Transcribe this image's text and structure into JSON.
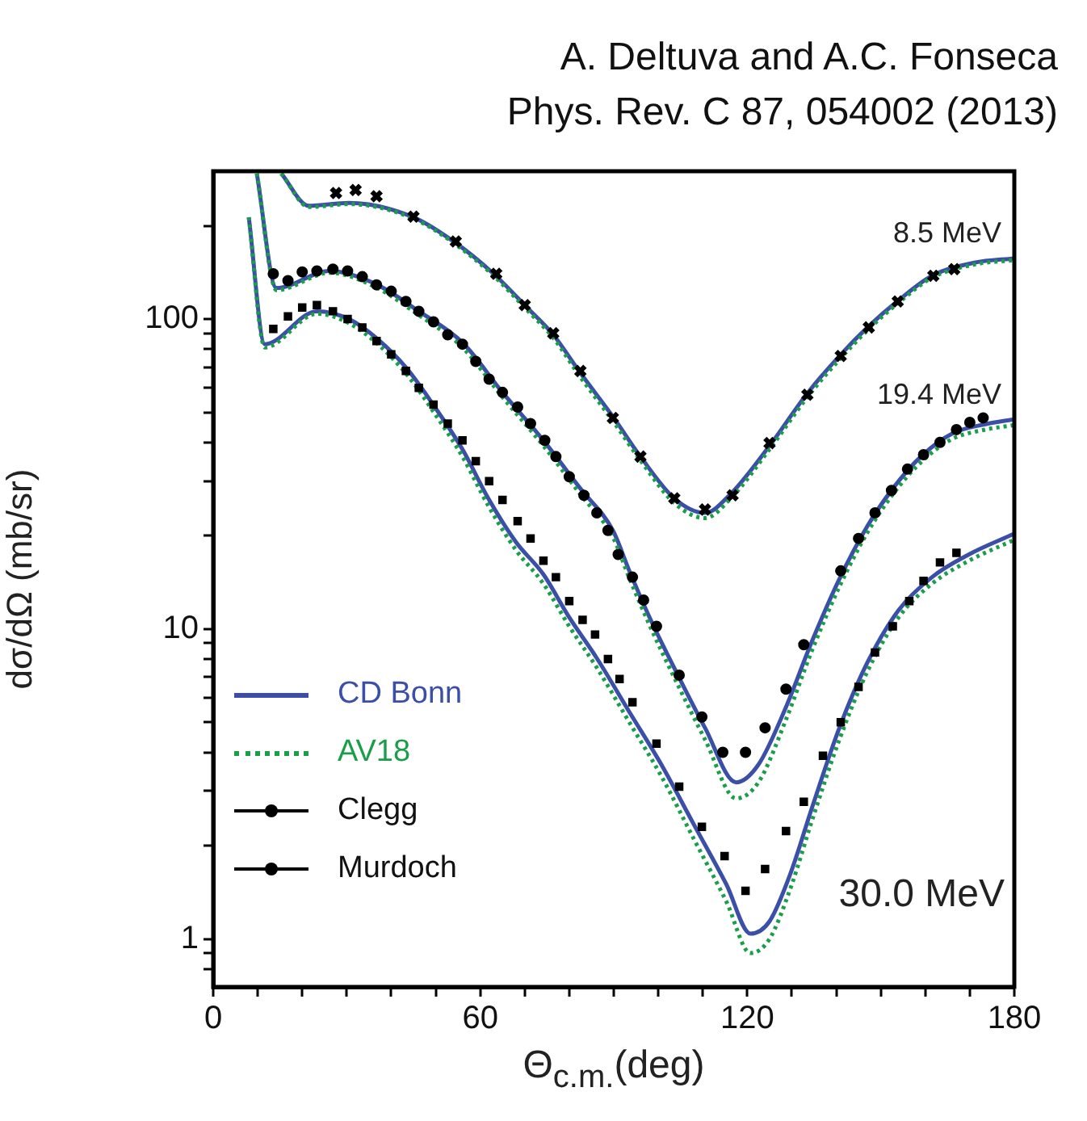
{
  "chart_data": {
    "type": "line",
    "title": "A. Deltuva and A.C. Fonseca",
    "subtitle": "Phys. Rev. C 87, 054002 (2013)",
    "xlabel": "Θ$_{c.m.}$(deg)",
    "ylabel": "dσ/dΩ (mb/sr)",
    "log": "y",
    "xlim": [
      0,
      180
    ],
    "ylim": [
      0.7,
      300
    ],
    "xticks": [
      0,
      {
        "value": 10,
        "label": null
      },
      {
        "value": 20,
        "label": null
      },
      {
        "value": 30,
        "label": null
      },
      {
        "value": 40,
        "label": null
      },
      {
        "value": 50,
        "label": null
      },
      60,
      {
        "value": 70,
        "label": null
      },
      {
        "value": 80,
        "label": null
      },
      {
        "value": 90,
        "label": null
      },
      {
        "value": 100,
        "label": null
      },
      {
        "value": 110,
        "label": null
      },
      120,
      {
        "value": 130,
        "label": null
      },
      {
        "value": 140,
        "label": null
      },
      {
        "value": 150,
        "label": null
      },
      {
        "value": 160,
        "label": null
      },
      {
        "value": 170,
        "label": null
      },
      180
    ],
    "yticks": [
      {
        "value": 0.8,
        "label": null
      },
      {
        "value": 0.9,
        "label": null
      },
      1,
      {
        "value": 2,
        "label": null
      },
      {
        "value": 3,
        "label": null
      },
      {
        "value": 4,
        "label": null
      },
      {
        "value": 5,
        "label": null
      },
      {
        "value": 6,
        "label": null
      },
      {
        "value": 7,
        "label": null
      },
      {
        "value": 8,
        "label": null
      },
      {
        "value": 9,
        "label": null
      },
      10,
      {
        "value": 20,
        "label": null
      },
      {
        "value": 30,
        "label": null
      },
      {
        "value": 40,
        "label": null
      },
      {
        "value": 50,
        "label": null
      },
      {
        "value": 60,
        "label": null
      },
      {
        "value": 70,
        "label": null
      },
      {
        "value": 80,
        "label": null
      },
      {
        "value": 90,
        "label": null
      },
      100,
      {
        "value": 200,
        "label": null
      }
    ],
    "legend": "center left",
    "annotations": [
      "8.5 MeV",
      "19.4 MeV",
      "30.0 MeV"
    ],
    "series": [
      {
        "name": "CD Bonn",
        "color": "#3b4fa8",
        "line_style": "solid",
        "marker": "none",
        "x": [
          15.3,
          21.5,
          30.5,
          45,
          54.5,
          63,
          70.5,
          76.4,
          82.5,
          90,
          96,
          103.6,
          110.5,
          116.4,
          125,
          133.5,
          140.7,
          147,
          154,
          161.5,
          171,
          180
        ],
        "values": [
          295,
          232,
          237,
          213,
          176,
          140,
          109,
          89,
          67,
          48,
          36,
          26.4,
          23.7,
          27.4,
          39,
          57.6,
          76,
          94,
          115,
          138,
          152,
          157
        ]
      },
      {
        "name": "AV18",
        "color": "#1a9e4a",
        "line_style": "dotted",
        "marker": "none",
        "x": [
          15.3,
          21.5,
          30.5,
          45,
          54.5,
          63,
          70.5,
          76.4,
          82.5,
          90,
          96,
          103.6,
          110.5,
          116.4,
          125,
          133.5,
          140.7,
          147,
          154,
          161.5,
          171,
          180
        ],
        "values": [
          295,
          230,
          235,
          211,
          174,
          138,
          107,
          87,
          65,
          46.5,
          35,
          25.5,
          22.8,
          26.5,
          38,
          56,
          74,
          92,
          113,
          136,
          150,
          155
        ]
      },
      {
        "color": "#3b4fa8",
        "line_style": "solid",
        "marker": "none",
        "x": [
          9.8,
          14.2,
          26.2,
          36.4,
          46.2,
          56,
          65,
          74.2,
          82.5,
          89.8,
          93.5,
          98.3,
          104.4,
          110.5,
          117.5,
          122.5,
          128.7,
          134.5,
          140.7,
          147,
          152.7,
          159,
          166,
          173.5,
          180
        ],
        "values": [
          295,
          126,
          143,
          130,
          106,
          84,
          58,
          40.6,
          28.4,
          20.8,
          15.4,
          10.7,
          7.1,
          4.8,
          3.2,
          3.65,
          5.6,
          9.1,
          14.5,
          21.5,
          28.4,
          36,
          42.7,
          45.8,
          47.5
        ]
      },
      {
        "color": "#1a9e4a",
        "line_style": "dotted",
        "marker": "none",
        "x": [
          9.8,
          14.2,
          26.2,
          36.4,
          46.2,
          56,
          65,
          74.2,
          82.5,
          89.8,
          93.5,
          98.3,
          104.4,
          110.5,
          117.5,
          122.5,
          128.7,
          134.5,
          140.7,
          147,
          152.7,
          159,
          166,
          173.5,
          180
        ],
        "values": [
          295,
          124,
          141,
          127,
          103,
          81,
          56,
          39,
          27.2,
          19.8,
          14.6,
          10.1,
          6.6,
          4.4,
          2.84,
          3.2,
          5.1,
          8.5,
          13.7,
          20.5,
          27.2,
          34.5,
          41,
          44,
          45.5
        ]
      },
      {
        "color": "#3b4fa8",
        "line_style": "solid",
        "marker": "none",
        "x": [
          8,
          11.6,
          23.3,
          30.5,
          37,
          43.6,
          49.8,
          56,
          61.8,
          68,
          74.2,
          80,
          86.2,
          93.5,
          100.7,
          108,
          115.3,
          120.7,
          125,
          129.8,
          134.5,
          140.7,
          147,
          154,
          161.5,
          169.8,
          180
        ],
        "values": [
          213,
          83,
          106,
          100,
          86,
          69,
          52,
          38,
          26.4,
          19.1,
          15,
          10.9,
          8.05,
          5.4,
          3.65,
          2.34,
          1.5,
          1.04,
          1.14,
          1.64,
          2.64,
          4.8,
          7.8,
          11.5,
          14.7,
          17.4,
          20.3
        ]
      },
      {
        "color": "#1a9e4a",
        "line_style": "dotted",
        "marker": "none",
        "x": [
          8,
          11.6,
          23.3,
          30.5,
          37,
          43.6,
          49.8,
          56,
          61.8,
          68,
          74.2,
          80,
          86.2,
          93.5,
          100.7,
          108,
          115.3,
          120.7,
          125,
          129.8,
          134.5,
          140.7,
          147,
          154,
          161.5,
          169.8,
          180
        ],
        "values": [
          213,
          81,
          104,
          97,
          83,
          66,
          49.5,
          36,
          25,
          18,
          14,
          10.2,
          7.5,
          5.0,
          3.35,
          2.1,
          1.32,
          0.9,
          1.0,
          1.47,
          2.4,
          4.4,
          7.3,
          10.9,
          14,
          16.6,
          19.4
        ]
      },
      {
        "name": "Clegg",
        "type": "scatter",
        "color": "#000000",
        "marker": "cross",
        "x": [
          27.6,
          32,
          36.7,
          45,
          54.5,
          63.6,
          70,
          76.4,
          82.5,
          89.8,
          96,
          103.6,
          110.5,
          116.7,
          125,
          133.5,
          141,
          147.3,
          153.8,
          161.8,
          166.5
        ],
        "values": [
          255,
          261,
          249,
          214,
          178,
          140,
          111,
          90,
          68,
          48,
          36,
          26.4,
          24.3,
          27,
          39.8,
          57,
          76,
          94,
          114,
          138,
          145
        ]
      },
      {
        "name": "Murdoch",
        "type": "scatter",
        "color": "#000000",
        "marker": "circle",
        "x": [
          13.5,
          16.8,
          20,
          23.3,
          26.9,
          30.2,
          33.5,
          36.7,
          40,
          43.3,
          46.2,
          49.5,
          52.7,
          56,
          59,
          62,
          65,
          68.4,
          71.3,
          74.5,
          77,
          80,
          83.3,
          86.2,
          88.7,
          91,
          94.2,
          96.7,
          99.6,
          104.7,
          109.8,
          114.5,
          119.6,
          124,
          128.7,
          132.7,
          141,
          145,
          148.7,
          152.4,
          156,
          159.6,
          163.3,
          167,
          170,
          173
        ],
        "values": [
          140,
          133,
          142,
          143,
          145,
          143,
          137,
          129,
          123,
          114,
          106,
          98,
          89,
          83,
          73,
          64,
          58,
          52,
          46,
          40.6,
          36,
          31,
          27,
          23.7,
          20.8,
          17.4,
          14.7,
          12.4,
          10.2,
          7.1,
          5.2,
          4.0,
          4.0,
          4.8,
          6.4,
          8.9,
          15.4,
          19.6,
          23.7,
          28,
          32.8,
          36.5,
          40,
          44,
          46.4,
          48
        ]
      },
      {
        "type": "scatter",
        "color": "#000000",
        "marker": "square",
        "x": [
          13.5,
          16.8,
          20,
          23.3,
          26.9,
          30.2,
          33.5,
          36.7,
          40,
          43.3,
          46.2,
          49.5,
          52.7,
          56,
          59,
          62,
          65,
          68.4,
          71.3,
          74.2,
          77,
          80,
          83,
          85.8,
          88.7,
          91.3,
          94.2,
          99.6,
          104.7,
          109.8,
          114.9,
          119.6,
          124,
          128.7,
          132.7,
          137,
          141,
          145,
          148.7,
          152.7,
          156.4,
          159.6,
          163.3,
          167
        ],
        "values": [
          93,
          102,
          109,
          111,
          106,
          100,
          94,
          85,
          77,
          68,
          60,
          53,
          46,
          40.6,
          34.8,
          30,
          26.1,
          22.3,
          19.6,
          16.6,
          14.7,
          12.3,
          10.7,
          9.6,
          8.0,
          6.9,
          5.8,
          4.27,
          3.1,
          2.3,
          1.85,
          1.43,
          1.68,
          2.23,
          2.77,
          3.9,
          5.0,
          6.5,
          8.4,
          10.2,
          12.3,
          14.3,
          16.4,
          17.6
        ]
      }
    ]
  }
}
